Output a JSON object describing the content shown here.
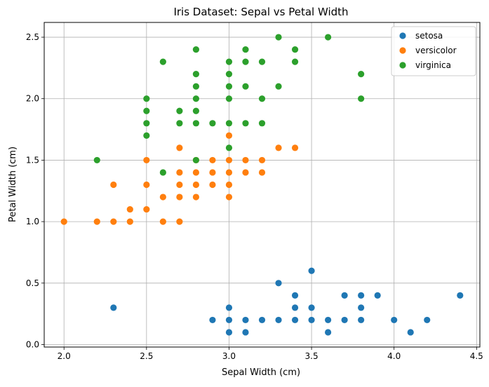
{
  "chart_data": {
    "type": "scatter",
    "title": "Iris Dataset: Sepal vs Petal Width",
    "xlabel": "Sepal Width (cm)",
    "ylabel": "Petal Width (cm)",
    "xlim": [
      1.88,
      4.52
    ],
    "ylim": [
      -0.02,
      2.62
    ],
    "xticks": [
      2.0,
      2.5,
      3.0,
      3.5,
      4.0,
      4.5
    ],
    "xtick_labels": [
      "2.0",
      "2.5",
      "3.0",
      "3.5",
      "4.0",
      "4.5"
    ],
    "yticks": [
      0.0,
      0.5,
      1.0,
      1.5,
      2.0,
      2.5
    ],
    "ytick_labels": [
      "0.0",
      "0.5",
      "1.0",
      "1.5",
      "2.0",
      "2.5"
    ],
    "grid": true,
    "legend_position": "top-right",
    "series": [
      {
        "name": "setosa",
        "color": "#1f77b4",
        "points": [
          [
            2.3,
            0.3
          ],
          [
            2.9,
            0.2
          ],
          [
            3.0,
            0.1
          ],
          [
            3.0,
            0.2
          ],
          [
            3.0,
            0.3
          ],
          [
            3.1,
            0.1
          ],
          [
            3.1,
            0.2
          ],
          [
            3.2,
            0.2
          ],
          [
            3.3,
            0.2
          ],
          [
            3.3,
            0.5
          ],
          [
            3.4,
            0.2
          ],
          [
            3.4,
            0.3
          ],
          [
            3.4,
            0.4
          ],
          [
            3.5,
            0.2
          ],
          [
            3.5,
            0.3
          ],
          [
            3.5,
            0.6
          ],
          [
            3.6,
            0.1
          ],
          [
            3.6,
            0.2
          ],
          [
            3.7,
            0.2
          ],
          [
            3.7,
            0.4
          ],
          [
            3.8,
            0.2
          ],
          [
            3.8,
            0.3
          ],
          [
            3.8,
            0.4
          ],
          [
            3.9,
            0.4
          ],
          [
            4.0,
            0.2
          ],
          [
            4.1,
            0.1
          ],
          [
            4.2,
            0.2
          ],
          [
            4.4,
            0.4
          ]
        ]
      },
      {
        "name": "versicolor",
        "color": "#ff7f0e",
        "points": [
          [
            2.0,
            1.0
          ],
          [
            2.2,
            1.0
          ],
          [
            2.3,
            1.0
          ],
          [
            2.3,
            1.3
          ],
          [
            2.4,
            1.0
          ],
          [
            2.4,
            1.1
          ],
          [
            2.5,
            1.1
          ],
          [
            2.5,
            1.3
          ],
          [
            2.5,
            1.5
          ],
          [
            2.6,
            1.0
          ],
          [
            2.6,
            1.2
          ],
          [
            2.7,
            1.0
          ],
          [
            2.7,
            1.2
          ],
          [
            2.7,
            1.3
          ],
          [
            2.7,
            1.4
          ],
          [
            2.7,
            1.6
          ],
          [
            2.8,
            1.2
          ],
          [
            2.8,
            1.3
          ],
          [
            2.8,
            1.4
          ],
          [
            2.8,
            1.5
          ],
          [
            2.9,
            1.3
          ],
          [
            2.9,
            1.4
          ],
          [
            2.9,
            1.5
          ],
          [
            3.0,
            1.2
          ],
          [
            3.0,
            1.3
          ],
          [
            3.0,
            1.4
          ],
          [
            3.0,
            1.5
          ],
          [
            3.0,
            1.7
          ],
          [
            3.1,
            1.4
          ],
          [
            3.1,
            1.5
          ],
          [
            3.2,
            1.4
          ],
          [
            3.2,
            1.5
          ],
          [
            3.3,
            1.6
          ],
          [
            3.4,
            1.6
          ]
        ]
      },
      {
        "name": "virginica",
        "color": "#2ca02c",
        "points": [
          [
            2.2,
            1.5
          ],
          [
            2.5,
            1.7
          ],
          [
            2.5,
            1.8
          ],
          [
            2.5,
            1.9
          ],
          [
            2.5,
            2.0
          ],
          [
            2.6,
            1.4
          ],
          [
            2.6,
            2.3
          ],
          [
            2.7,
            1.8
          ],
          [
            2.7,
            1.9
          ],
          [
            2.8,
            1.5
          ],
          [
            2.8,
            1.8
          ],
          [
            2.8,
            1.9
          ],
          [
            2.8,
            2.0
          ],
          [
            2.8,
            2.1
          ],
          [
            2.8,
            2.2
          ],
          [
            2.8,
            2.4
          ],
          [
            2.9,
            1.8
          ],
          [
            3.0,
            1.6
          ],
          [
            3.0,
            1.8
          ],
          [
            3.0,
            2.0
          ],
          [
            3.0,
            2.1
          ],
          [
            3.0,
            2.2
          ],
          [
            3.0,
            2.3
          ],
          [
            3.1,
            1.8
          ],
          [
            3.1,
            2.1
          ],
          [
            3.1,
            2.3
          ],
          [
            3.1,
            2.4
          ],
          [
            3.2,
            1.8
          ],
          [
            3.2,
            2.0
          ],
          [
            3.2,
            2.3
          ],
          [
            3.3,
            2.1
          ],
          [
            3.3,
            2.5
          ],
          [
            3.4,
            2.3
          ],
          [
            3.4,
            2.4
          ],
          [
            3.6,
            2.5
          ],
          [
            3.8,
            2.0
          ],
          [
            3.8,
            2.2
          ]
        ]
      }
    ]
  }
}
